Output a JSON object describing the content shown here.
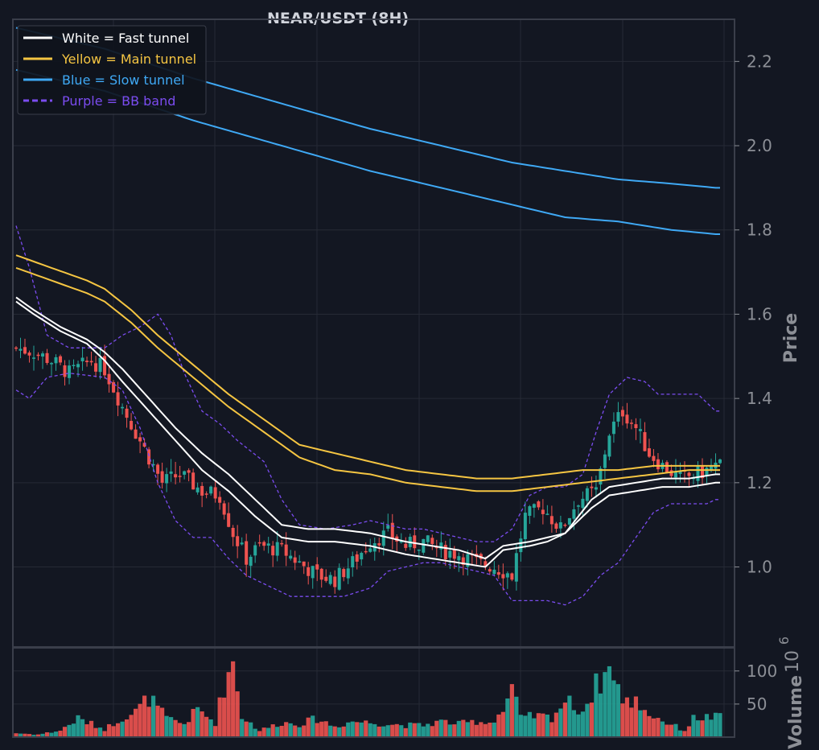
{
  "chart_data": {
    "type": "candlestick",
    "title": "NEAR/USDT (8H)",
    "ylabel": "Price",
    "volume_label": "Volume",
    "volume_exponent_base": "10",
    "volume_exponent": "6",
    "ylim": [
      0.81,
      2.3
    ],
    "yticks": [
      "1.0",
      "1.2",
      "1.4",
      "1.6",
      "1.8",
      "2.0",
      "2.2"
    ],
    "volume_ylim": [
      0,
      135
    ],
    "volume_ticks": [
      "50",
      "100"
    ],
    "grid": true,
    "legend_position": "top-left",
    "legend": [
      {
        "label": "White = Fast tunnel",
        "color": "#ffffff",
        "style": "solid"
      },
      {
        "label": "Yellow = Main tunnel",
        "color": "#f5c542",
        "style": "solid"
      },
      {
        "label": "Blue = Slow tunnel",
        "color": "#3fa9f5",
        "style": "solid"
      },
      {
        "label": "Purple = BB band",
        "color": "#7b4cf0",
        "style": "dashed"
      }
    ],
    "candle_colors": {
      "up": "#26a69a",
      "down": "#ef5350"
    },
    "close_path": [
      [
        0,
        1.52
      ],
      [
        4,
        1.51
      ],
      [
        8,
        1.49
      ],
      [
        12,
        1.46
      ],
      [
        17,
        1.49
      ],
      [
        20,
        1.47
      ],
      [
        24,
        1.38
      ],
      [
        27,
        1.32
      ],
      [
        30,
        1.26
      ],
      [
        33,
        1.2
      ],
      [
        37,
        1.22
      ],
      [
        42,
        1.18
      ],
      [
        46,
        1.17
      ],
      [
        49,
        1.08
      ],
      [
        52,
        1.02
      ],
      [
        55,
        1.05
      ],
      [
        60,
        1.04
      ],
      [
        64,
        1.01
      ],
      [
        68,
        0.98
      ],
      [
        72,
        0.97
      ],
      [
        76,
        1.01
      ],
      [
        80,
        1.06
      ],
      [
        84,
        1.08
      ],
      [
        88,
        1.05
      ],
      [
        92,
        1.06
      ],
      [
        96,
        1.04
      ],
      [
        100,
        1.03
      ],
      [
        104,
        1.01
      ],
      [
        108,
        1.0
      ],
      [
        112,
        0.98
      ],
      [
        115,
        1.12
      ],
      [
        119,
        1.14
      ],
      [
        123,
        1.09
      ],
      [
        127,
        1.16
      ],
      [
        131,
        1.18
      ],
      [
        134,
        1.32
      ],
      [
        137,
        1.37
      ],
      [
        140,
        1.33
      ],
      [
        143,
        1.27
      ],
      [
        146,
        1.24
      ],
      [
        150,
        1.21
      ],
      [
        154,
        1.22
      ],
      [
        158,
        1.24
      ]
    ],
    "volume_path": [
      [
        0,
        6
      ],
      [
        5,
        4
      ],
      [
        10,
        10
      ],
      [
        14,
        28
      ],
      [
        20,
        12
      ],
      [
        24,
        30
      ],
      [
        27,
        38
      ],
      [
        30,
        60
      ],
      [
        34,
        28
      ],
      [
        38,
        20
      ],
      [
        41,
        42
      ],
      [
        45,
        22
      ],
      [
        47,
        78
      ],
      [
        49,
        115
      ],
      [
        51,
        32
      ],
      [
        55,
        10
      ],
      [
        60,
        22
      ],
      [
        64,
        20
      ],
      [
        68,
        28
      ],
      [
        72,
        16
      ],
      [
        76,
        24
      ],
      [
        80,
        22
      ],
      [
        84,
        20
      ],
      [
        88,
        18
      ],
      [
        92,
        18
      ],
      [
        96,
        24
      ],
      [
        100,
        20
      ],
      [
        104,
        24
      ],
      [
        107,
        22
      ],
      [
        110,
        40
      ],
      [
        112,
        75
      ],
      [
        114,
        28
      ],
      [
        117,
        32
      ],
      [
        121,
        30
      ],
      [
        124,
        55
      ],
      [
        128,
        40
      ],
      [
        131,
        78
      ],
      [
        133,
        95
      ],
      [
        135,
        105
      ],
      [
        137,
        50
      ],
      [
        140,
        55
      ],
      [
        143,
        35
      ],
      [
        147,
        22
      ],
      [
        151,
        10
      ],
      [
        153,
        28
      ],
      [
        155,
        30
      ],
      [
        158,
        30
      ]
    ],
    "bb_upper": [
      [
        0,
        1.81
      ],
      [
        3,
        1.71
      ],
      [
        7,
        1.55
      ],
      [
        12,
        1.52
      ],
      [
        20,
        1.52
      ],
      [
        24,
        1.55
      ],
      [
        28,
        1.57
      ],
      [
        32,
        1.6
      ],
      [
        35,
        1.55
      ],
      [
        38,
        1.46
      ],
      [
        42,
        1.37
      ],
      [
        46,
        1.34
      ],
      [
        50,
        1.3
      ],
      [
        56,
        1.25
      ],
      [
        60,
        1.16
      ],
      [
        64,
        1.1
      ],
      [
        70,
        1.09
      ],
      [
        76,
        1.1
      ],
      [
        80,
        1.11
      ],
      [
        84,
        1.1
      ],
      [
        88,
        1.09
      ],
      [
        92,
        1.09
      ],
      [
        96,
        1.08
      ],
      [
        100,
        1.07
      ],
      [
        104,
        1.06
      ],
      [
        108,
        1.06
      ],
      [
        112,
        1.09
      ],
      [
        116,
        1.17
      ],
      [
        120,
        1.19
      ],
      [
        124,
        1.19
      ],
      [
        128,
        1.22
      ],
      [
        131,
        1.32
      ],
      [
        134,
        1.41
      ],
      [
        138,
        1.45
      ],
      [
        142,
        1.44
      ],
      [
        145,
        1.41
      ],
      [
        150,
        1.41
      ],
      [
        154,
        1.41
      ],
      [
        158,
        1.37
      ]
    ],
    "bb_lower": [
      [
        0,
        1.42
      ],
      [
        3,
        1.4
      ],
      [
        7,
        1.45
      ],
      [
        12,
        1.46
      ],
      [
        20,
        1.45
      ],
      [
        24,
        1.42
      ],
      [
        28,
        1.33
      ],
      [
        32,
        1.2
      ],
      [
        36,
        1.11
      ],
      [
        40,
        1.07
      ],
      [
        44,
        1.07
      ],
      [
        48,
        1.02
      ],
      [
        52,
        0.98
      ],
      [
        58,
        0.95
      ],
      [
        62,
        0.93
      ],
      [
        68,
        0.93
      ],
      [
        74,
        0.93
      ],
      [
        80,
        0.95
      ],
      [
        84,
        0.99
      ],
      [
        88,
        1.0
      ],
      [
        92,
        1.01
      ],
      [
        96,
        1.01
      ],
      [
        100,
        1.0
      ],
      [
        104,
        0.99
      ],
      [
        108,
        0.98
      ],
      [
        112,
        0.92
      ],
      [
        116,
        0.92
      ],
      [
        120,
        0.92
      ],
      [
        124,
        0.91
      ],
      [
        128,
        0.93
      ],
      [
        132,
        0.98
      ],
      [
        136,
        1.01
      ],
      [
        140,
        1.07
      ],
      [
        144,
        1.13
      ],
      [
        148,
        1.15
      ],
      [
        152,
        1.15
      ],
      [
        156,
        1.15
      ],
      [
        158,
        1.16
      ]
    ],
    "fast_upper": [
      [
        0,
        1.64
      ],
      [
        4,
        1.61
      ],
      [
        10,
        1.57
      ],
      [
        16,
        1.54
      ],
      [
        20,
        1.51
      ],
      [
        24,
        1.47
      ],
      [
        30,
        1.4
      ],
      [
        36,
        1.33
      ],
      [
        42,
        1.27
      ],
      [
        48,
        1.22
      ],
      [
        54,
        1.16
      ],
      [
        60,
        1.1
      ],
      [
        66,
        1.09
      ],
      [
        72,
        1.09
      ],
      [
        80,
        1.08
      ],
      [
        88,
        1.06
      ],
      [
        94,
        1.05
      ],
      [
        100,
        1.04
      ],
      [
        106,
        1.02
      ],
      [
        110,
        1.05
      ],
      [
        116,
        1.06
      ],
      [
        120,
        1.07
      ],
      [
        124,
        1.08
      ],
      [
        130,
        1.16
      ],
      [
        134,
        1.19
      ],
      [
        140,
        1.2
      ],
      [
        146,
        1.21
      ],
      [
        152,
        1.21
      ],
      [
        158,
        1.22
      ]
    ],
    "fast_lower": [
      [
        0,
        1.63
      ],
      [
        4,
        1.6
      ],
      [
        10,
        1.56
      ],
      [
        16,
        1.53
      ],
      [
        20,
        1.49
      ],
      [
        24,
        1.44
      ],
      [
        30,
        1.37
      ],
      [
        36,
        1.3
      ],
      [
        42,
        1.23
      ],
      [
        48,
        1.18
      ],
      [
        54,
        1.12
      ],
      [
        60,
        1.07
      ],
      [
        66,
        1.06
      ],
      [
        72,
        1.06
      ],
      [
        80,
        1.05
      ],
      [
        88,
        1.03
      ],
      [
        94,
        1.02
      ],
      [
        100,
        1.01
      ],
      [
        106,
        1.0
      ],
      [
        110,
        1.04
      ],
      [
        116,
        1.05
      ],
      [
        120,
        1.06
      ],
      [
        124,
        1.08
      ],
      [
        130,
        1.14
      ],
      [
        134,
        1.17
      ],
      [
        140,
        1.18
      ],
      [
        146,
        1.19
      ],
      [
        152,
        1.19
      ],
      [
        158,
        1.2
      ]
    ],
    "main_upper": [
      [
        0,
        1.74
      ],
      [
        8,
        1.71
      ],
      [
        16,
        1.68
      ],
      [
        20,
        1.66
      ],
      [
        26,
        1.61
      ],
      [
        32,
        1.55
      ],
      [
        40,
        1.48
      ],
      [
        48,
        1.41
      ],
      [
        56,
        1.35
      ],
      [
        64,
        1.29
      ],
      [
        72,
        1.27
      ],
      [
        80,
        1.25
      ],
      [
        88,
        1.23
      ],
      [
        96,
        1.22
      ],
      [
        104,
        1.21
      ],
      [
        112,
        1.21
      ],
      [
        120,
        1.22
      ],
      [
        128,
        1.23
      ],
      [
        136,
        1.23
      ],
      [
        144,
        1.24
      ],
      [
        152,
        1.24
      ],
      [
        158,
        1.24
      ]
    ],
    "main_lower": [
      [
        0,
        1.71
      ],
      [
        8,
        1.68
      ],
      [
        16,
        1.65
      ],
      [
        20,
        1.63
      ],
      [
        26,
        1.58
      ],
      [
        32,
        1.52
      ],
      [
        40,
        1.45
      ],
      [
        48,
        1.38
      ],
      [
        56,
        1.32
      ],
      [
        64,
        1.26
      ],
      [
        72,
        1.23
      ],
      [
        80,
        1.22
      ],
      [
        88,
        1.2
      ],
      [
        96,
        1.19
      ],
      [
        104,
        1.18
      ],
      [
        112,
        1.18
      ],
      [
        120,
        1.19
      ],
      [
        128,
        1.2
      ],
      [
        136,
        1.21
      ],
      [
        144,
        1.22
      ],
      [
        152,
        1.23
      ],
      [
        158,
        1.23
      ]
    ],
    "slow_upper": [
      [
        0,
        2.28
      ],
      [
        20,
        2.23
      ],
      [
        40,
        2.16
      ],
      [
        60,
        2.1
      ],
      [
        80,
        2.04
      ],
      [
        100,
        1.99
      ],
      [
        112,
        1.96
      ],
      [
        124,
        1.94
      ],
      [
        136,
        1.92
      ],
      [
        148,
        1.91
      ],
      [
        158,
        1.9
      ]
    ],
    "slow_lower": [
      [
        0,
        2.18
      ],
      [
        20,
        2.13
      ],
      [
        40,
        2.06
      ],
      [
        60,
        2.0
      ],
      [
        80,
        1.94
      ],
      [
        100,
        1.89
      ],
      [
        112,
        1.86
      ],
      [
        124,
        1.83
      ],
      [
        136,
        1.82
      ],
      [
        148,
        1.8
      ],
      [
        158,
        1.79
      ]
    ]
  }
}
